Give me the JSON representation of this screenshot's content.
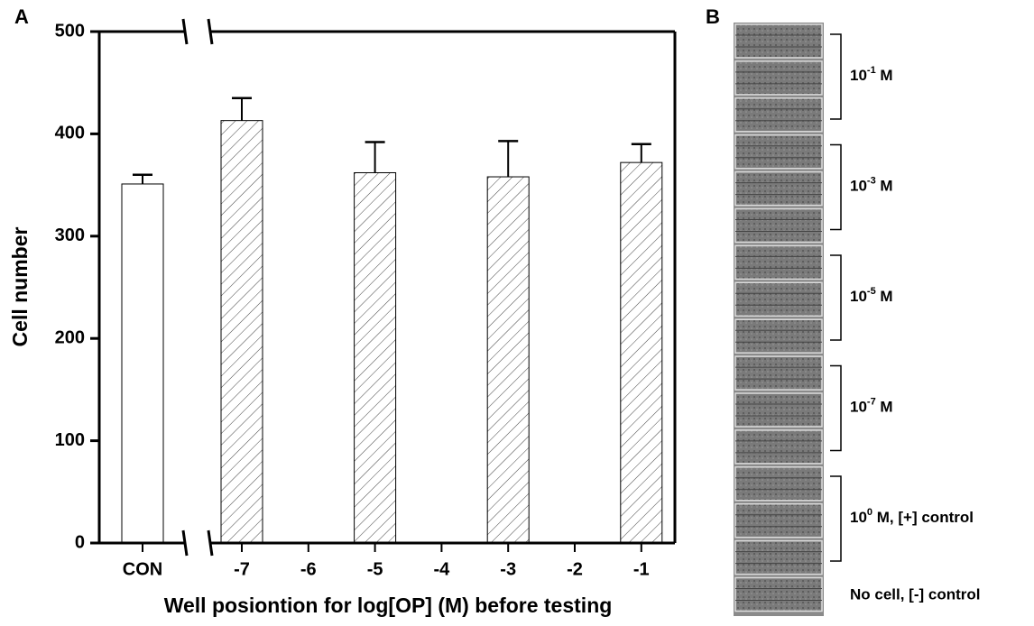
{
  "panel_labels": [
    "A",
    "B"
  ],
  "chart_data": {
    "type": "bar",
    "x_label": "Well posiontion for log[OP] (M) before testing",
    "y_label": "Cell number",
    "categories": [
      "CON",
      "-7",
      "-6",
      "-5",
      "-4",
      "-3",
      "-2",
      "-1"
    ],
    "values": [
      351,
      413,
      null,
      362,
      null,
      358,
      null,
      372
    ],
    "errors": [
      9,
      22,
      null,
      30,
      null,
      35,
      null,
      18
    ],
    "hatch": [
      false,
      true,
      true,
      true,
      true,
      true,
      true,
      true
    ],
    "color": "#ffffff",
    "ylim": [
      0,
      500
    ],
    "yticks": [
      0,
      100,
      200,
      300,
      400,
      500
    ],
    "axis_break": true
  },
  "image_panel": {
    "labels": [
      {
        "base": "10",
        "exponent": "-1",
        "suffix": " M"
      },
      {
        "base": "10",
        "exponent": "-3",
        "suffix": " M"
      },
      {
        "base": "10",
        "exponent": "-5",
        "suffix": " M"
      },
      {
        "base": "10",
        "exponent": "-7",
        "suffix": " M"
      },
      {
        "base": "10",
        "exponent": "0",
        "suffix": " M, [+] control"
      }
    ],
    "negative_control": "No cell, [-] control"
  }
}
